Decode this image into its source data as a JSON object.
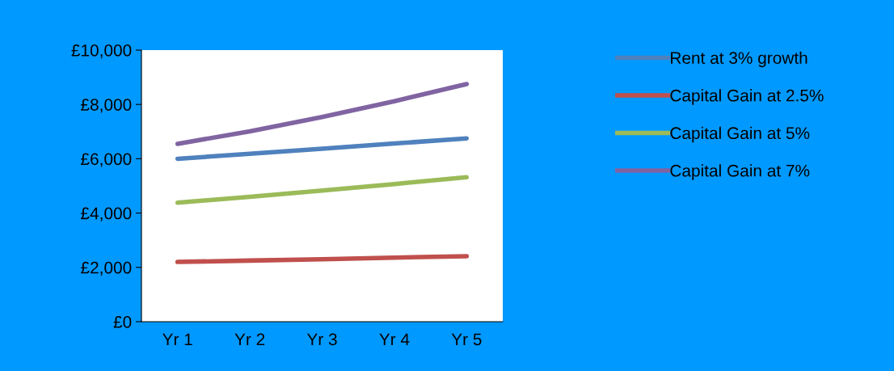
{
  "chart_data": {
    "type": "line",
    "categories": [
      "Yr 1",
      "Yr 2",
      "Yr 3",
      "Yr 4",
      "Yr 5"
    ],
    "series": [
      {
        "name": "Rent at 3% growth",
        "color": "#4f81bd",
        "values": [
          6000,
          6180,
          6370,
          6560,
          6750
        ]
      },
      {
        "name": "Capital Gain at 2.5%",
        "color": "#c0504d",
        "values": [
          2200,
          2250,
          2300,
          2360,
          2410
        ]
      },
      {
        "name": "Capital Gain at 5%",
        "color": "#9bbb59",
        "values": [
          4380,
          4600,
          4830,
          5070,
          5320
        ]
      },
      {
        "name": "Capital Gain at 7%",
        "color": "#8064a2",
        "values": [
          6550,
          7010,
          7540,
          8120,
          8750
        ]
      }
    ],
    "ylim": [
      0,
      10000
    ],
    "yticks": [
      {
        "value": 0,
        "label": "£0"
      },
      {
        "value": 2000,
        "label": "£2,000"
      },
      {
        "value": 4000,
        "label": "£4,000"
      },
      {
        "value": 6000,
        "label": "£6,000"
      },
      {
        "value": 8000,
        "label": "£8,000"
      },
      {
        "value": 10000,
        "label": "£10,000"
      }
    ],
    "legend": "top right",
    "grid": false,
    "marker": "none",
    "line_style": "solid"
  }
}
